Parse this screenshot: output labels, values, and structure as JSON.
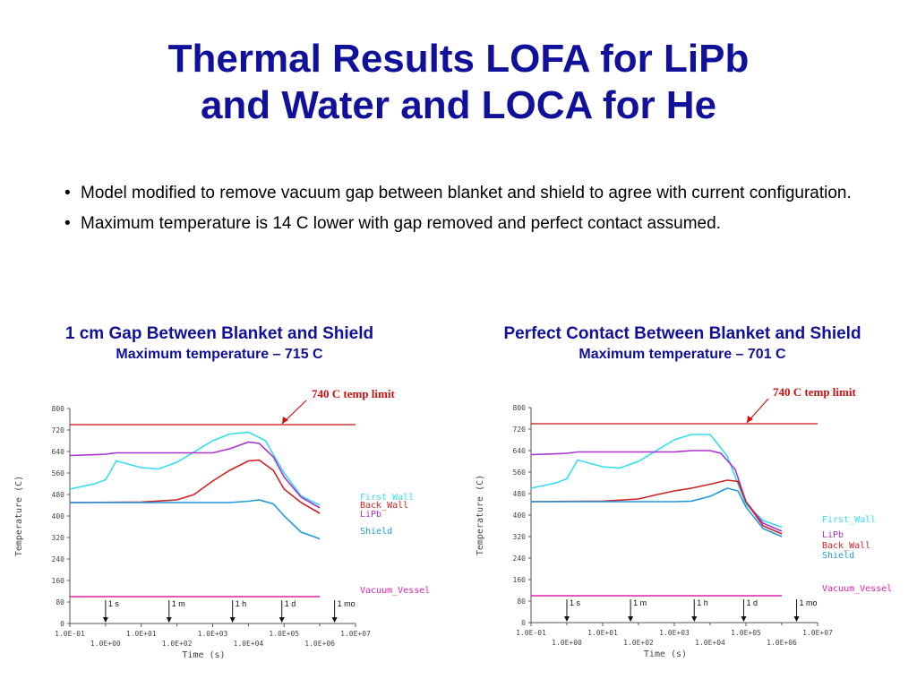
{
  "slide": {
    "title_line1": "Thermal Results LOFA for LiPb",
    "title_line2": "and Water and LOCA for He",
    "bullets": [
      "Model modified to remove vacuum gap between blanket and shield to agree with current configuration.",
      "Maximum temperature is 14 C lower with gap removed and perfect contact assumed."
    ],
    "left_panel": {
      "heading": "1 cm Gap Between Blanket and Shield",
      "subheading": "Maximum temperature – 715 C"
    },
    "right_panel": {
      "heading": "Perfect Contact Between Blanket and Shield",
      "subheading": "Maximum temperature – 701 C"
    }
  },
  "colors": {
    "title": "#10109a",
    "limit": "#cc1111",
    "first_wall": "#33ddee",
    "back_wall": "#cc2222",
    "lipb": "#aa33cc",
    "shield": "#2299dd",
    "vacuum_vessel": "#dd22aa"
  },
  "chart_data": [
    {
      "type": "line",
      "annotation": "740 C temp limit",
      "ylabel": "Temperature (C)",
      "xlabel": "Time (s)",
      "x_scale": "log",
      "xlim": [
        0.1,
        10000000
      ],
      "ylim": [
        0,
        800
      ],
      "y_ticks": [
        "0",
        "80",
        "160",
        "240",
        "320",
        "400",
        "480",
        "560",
        "640",
        "720",
        "800"
      ],
      "x_ticks_upper": [
        "1.0E-01",
        "1.0E+01",
        "1.0E+03",
        "1.0E+05",
        "1.0E+07"
      ],
      "x_ticks_lower": [
        "1.0E+00",
        "1.0E+02",
        "1.0E+04",
        "1.0E+06"
      ],
      "time_markers": [
        "1 s",
        "1 m",
        "1 h",
        "1 d",
        "1 mo"
      ],
      "time_marker_values": [
        1,
        60,
        3600,
        86400,
        2592000
      ],
      "limit_value": 740,
      "legend": [
        "First_Wall",
        "Back_Wall",
        "LiPb",
        "Shield",
        "Vacuum_Vessel"
      ],
      "series": [
        {
          "name": "First_Wall",
          "color": "#33ddee",
          "x": [
            0.1,
            0.5,
            1,
            2,
            10,
            30,
            100,
            1000,
            3000,
            10000,
            30000,
            100000,
            300000,
            1000000
          ],
          "y": [
            500,
            520,
            535,
            605,
            580,
            575,
            600,
            680,
            705,
            712,
            680,
            560,
            475,
            440
          ]
        },
        {
          "name": "Back_Wall",
          "color": "#cc2222",
          "x": [
            0.1,
            10,
            100,
            300,
            1000,
            3000,
            10000,
            20000,
            50000,
            100000,
            300000,
            1000000
          ],
          "y": [
            450,
            452,
            460,
            480,
            530,
            570,
            605,
            608,
            570,
            500,
            450,
            410
          ]
        },
        {
          "name": "LiPb",
          "color": "#aa33cc",
          "x": [
            0.1,
            0.5,
            1,
            2,
            10,
            100,
            1000,
            3000,
            10000,
            20000,
            50000,
            100000,
            300000,
            1000000
          ],
          "y": [
            625,
            628,
            630,
            635,
            635,
            635,
            635,
            650,
            675,
            670,
            620,
            545,
            470,
            430
          ]
        },
        {
          "name": "Shield",
          "color": "#2299dd",
          "x": [
            0.1,
            10,
            100,
            1000,
            3000,
            10000,
            20000,
            50000,
            100000,
            300000,
            1000000
          ],
          "y": [
            450,
            450,
            450,
            450,
            450,
            455,
            460,
            445,
            400,
            340,
            315
          ]
        },
        {
          "name": "Vacuum_Vessel",
          "color": "#dd22aa",
          "x": [
            0.1,
            1000000
          ],
          "y": [
            100,
            100
          ]
        }
      ]
    },
    {
      "type": "line",
      "annotation": "740 C temp limit",
      "ylabel": "Temperature (C)",
      "xlabel": "Time (s)",
      "x_scale": "log",
      "xlim": [
        0.1,
        10000000
      ],
      "ylim": [
        0,
        800
      ],
      "y_ticks": [
        "0",
        "80",
        "160",
        "240",
        "320",
        "400",
        "480",
        "560",
        "640",
        "720",
        "800"
      ],
      "x_ticks_upper": [
        "1.0E-01",
        "1.0E+01",
        "1.0E+03",
        "1.0E+05",
        "1.0E+07"
      ],
      "x_ticks_lower": [
        "1.0E+00",
        "1.0E+02",
        "1.0E+04",
        "1.0E+06"
      ],
      "time_markers": [
        "1 s",
        "1 m",
        "1 h",
        "1 d",
        "1 mo"
      ],
      "time_marker_values": [
        1,
        60,
        3600,
        86400,
        2592000
      ],
      "limit_value": 740,
      "legend": [
        "First_Wall",
        "LiPb",
        "Back_Wall",
        "Shield",
        "Vacuum_Vessel"
      ],
      "series": [
        {
          "name": "First_Wall",
          "color": "#33ddee",
          "x": [
            0.1,
            0.5,
            1,
            2,
            10,
            30,
            100,
            1000,
            3000,
            10000,
            30000,
            100000,
            300000,
            1000000
          ],
          "y": [
            500,
            520,
            535,
            605,
            580,
            575,
            600,
            680,
            700,
            700,
            620,
            440,
            380,
            355
          ]
        },
        {
          "name": "LiPb",
          "color": "#aa33cc",
          "x": [
            0.1,
            0.5,
            1,
            2,
            10,
            100,
            1000,
            3000,
            10000,
            20000,
            50000,
            100000,
            300000,
            1000000
          ],
          "y": [
            625,
            628,
            630,
            635,
            635,
            635,
            635,
            640,
            640,
            630,
            570,
            450,
            370,
            340
          ]
        },
        {
          "name": "Back_Wall",
          "color": "#cc2222",
          "x": [
            0.1,
            10,
            100,
            300,
            1000,
            3000,
            10000,
            30000,
            60000,
            100000,
            300000,
            1000000
          ],
          "y": [
            450,
            452,
            460,
            475,
            490,
            500,
            515,
            530,
            525,
            450,
            360,
            330
          ]
        },
        {
          "name": "Shield",
          "color": "#2299dd",
          "x": [
            0.1,
            10,
            100,
            1000,
            3000,
            10000,
            30000,
            60000,
            100000,
            300000,
            1000000
          ],
          "y": [
            450,
            450,
            450,
            450,
            452,
            470,
            500,
            490,
            430,
            350,
            320
          ]
        },
        {
          "name": "Vacuum_Vessel",
          "color": "#dd22aa",
          "x": [
            0.1,
            1000000
          ],
          "y": [
            100,
            100
          ]
        }
      ]
    }
  ]
}
